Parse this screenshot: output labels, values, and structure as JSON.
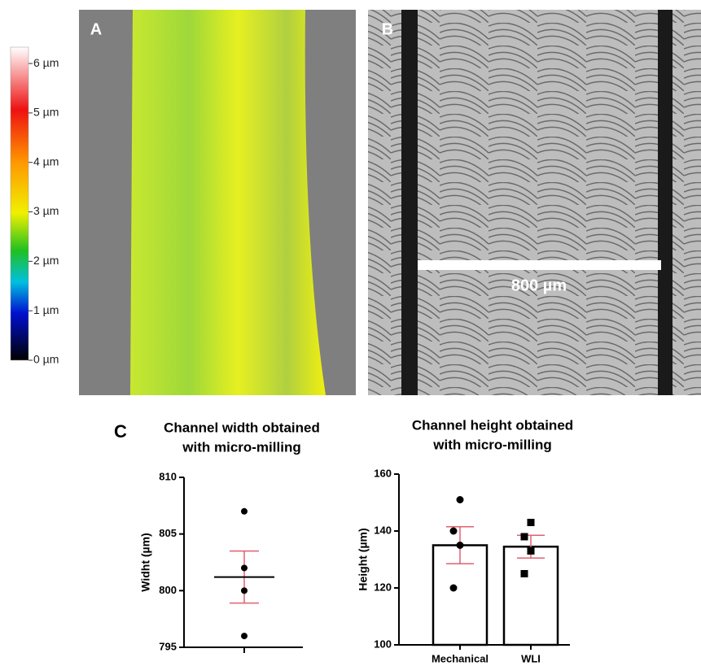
{
  "panel_labels": [
    "A",
    "B",
    "C"
  ],
  "colorbar": {
    "lim": [
      0,
      6.33
    ],
    "ticks": [
      {
        "value": 0,
        "label": "0 µm"
      },
      {
        "value": 1,
        "label": "1 µm"
      },
      {
        "value": 2,
        "label": "2 µm"
      },
      {
        "value": 3,
        "label": "3 µm"
      },
      {
        "value": 4,
        "label": "4 µm"
      },
      {
        "value": 5,
        "label": "5 µm"
      },
      {
        "value": 6,
        "label": "6 µm"
      }
    ]
  },
  "scale_bar": "800 µm",
  "chart_data": [
    {
      "type": "dot",
      "title": [
        "Channel width obtained",
        "with micro-milling"
      ],
      "y_label": "Widht (µm)",
      "values": [
        807,
        802,
        800,
        796
      ],
      "mean": 801.2,
      "error": 2.3,
      "color": "#000000",
      "error_color": "#e06070",
      "ylim": [
        795,
        810
      ],
      "yticks": [
        795,
        800,
        805,
        810
      ]
    },
    {
      "type": "bar",
      "title": [
        "Channel height obtained",
        "with micro-milling"
      ],
      "y_label": "Height (µm)",
      "categories": [
        "Mechanical",
        "WLI"
      ],
      "values": [
        135,
        134.5
      ],
      "errors": [
        6.5,
        4
      ],
      "points": [
        [
          151,
          140,
          135,
          120
        ],
        [
          143,
          138,
          133,
          125
        ]
      ],
      "markers": [
        "circle",
        "square"
      ],
      "color": "#000000",
      "error_color": "#e06070",
      "ylim": [
        100,
        160
      ],
      "yticks": [
        100,
        120,
        140,
        160
      ]
    }
  ]
}
